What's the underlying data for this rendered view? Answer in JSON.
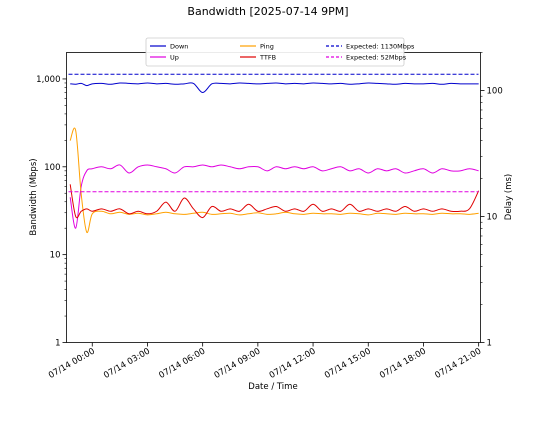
{
  "chart_data": {
    "type": "line",
    "title": "Bandwidth [2025-07-14 9PM]",
    "xlabel": "Date / Time",
    "ylabel": "Bandwidth (Mbps)",
    "y2label": "Delay (ms)",
    "yscale": "log",
    "y2scale": "log",
    "ylim": [
      1,
      2000
    ],
    "y2lim": [
      1,
      200
    ],
    "xlim_hours": [
      -1.4,
      21.1
    ],
    "x_ticks": [
      {
        "hour": 0,
        "label": "07/14 00:00"
      },
      {
        "hour": 3,
        "label": "07/14 03:00"
      },
      {
        "hour": 6,
        "label": "07/14 06:00"
      },
      {
        "hour": 9,
        "label": "07/14 09:00"
      },
      {
        "hour": 12,
        "label": "07/14 12:00"
      },
      {
        "hour": 15,
        "label": "07/14 15:00"
      },
      {
        "hour": 18,
        "label": "07/14 18:00"
      },
      {
        "hour": 21,
        "label": "07/14 21:00"
      }
    ],
    "y_ticks": [
      {
        "value": 1,
        "label": "1"
      },
      {
        "value": 10,
        "label": "10"
      },
      {
        "value": 100,
        "label": "100"
      },
      {
        "value": 1000,
        "label": "1,000"
      }
    ],
    "y2_ticks": [
      {
        "value": 1,
        "label": "1"
      },
      {
        "value": 10,
        "label": "10"
      },
      {
        "value": 100,
        "label": "100"
      }
    ],
    "legend_position": "top-center",
    "grid": false,
    "x_hours": [
      -1.2,
      -0.9,
      -0.6,
      -0.3,
      0,
      0.5,
      1,
      1.5,
      2,
      2.5,
      3,
      3.5,
      4,
      4.5,
      5,
      5.5,
      6,
      6.5,
      7,
      7.5,
      8,
      8.5,
      9,
      9.5,
      10,
      10.5,
      11,
      11.5,
      12,
      12.5,
      13,
      13.5,
      14,
      14.5,
      15,
      15.5,
      16,
      16.5,
      17,
      17.5,
      18,
      18.5,
      19,
      19.5,
      20,
      20.5,
      21
    ],
    "series": [
      {
        "name": "Down",
        "axis": "left",
        "color": "#0000cc",
        "values": [
          880,
          870,
          890,
          840,
          880,
          890,
          870,
          900,
          890,
          880,
          900,
          880,
          890,
          870,
          880,
          890,
          700,
          880,
          890,
          880,
          900,
          890,
          880,
          890,
          900,
          880,
          890,
          880,
          900,
          890,
          880,
          890,
          870,
          880,
          900,
          890,
          880,
          870,
          890,
          880,
          880,
          890,
          870,
          890,
          880,
          880,
          880
        ]
      },
      {
        "name": "Up",
        "axis": "left",
        "color": "#e000e0",
        "values": [
          45,
          20,
          60,
          90,
          95,
          100,
          95,
          105,
          85,
          100,
          105,
          100,
          95,
          85,
          100,
          100,
          105,
          100,
          105,
          100,
          95,
          100,
          100,
          90,
          100,
          95,
          100,
          95,
          100,
          90,
          95,
          100,
          90,
          95,
          85,
          95,
          90,
          95,
          85,
          90,
          95,
          85,
          95,
          90,
          90,
          95,
          90
        ]
      },
      {
        "name": "Ping",
        "axis": "right",
        "color": "#ffa000",
        "values": [
          40,
          48,
          15,
          7.5,
          10.5,
          11,
          10.5,
          10.8,
          10.4,
          10.6,
          10.3,
          10.5,
          10.8,
          10.5,
          10.4,
          10.6,
          10.8,
          10.4,
          10.5,
          10.6,
          10.3,
          10.5,
          10.7,
          10.4,
          10.5,
          10.8,
          10.5,
          10.4,
          10.6,
          10.5,
          10.5,
          10.4,
          10.6,
          10.5,
          10.3,
          10.6,
          10.5,
          10.4,
          10.6,
          10.5,
          10.5,
          10.4,
          10.6,
          10.5,
          10.5,
          10.4,
          10.6
        ]
      },
      {
        "name": "TTFB",
        "axis": "right",
        "color": "#e00000",
        "values": [
          18,
          10,
          11,
          11.5,
          11,
          11.5,
          11,
          11.5,
          10.5,
          11,
          10.5,
          11,
          13,
          11,
          14,
          11.5,
          9.8,
          12,
          11,
          11.5,
          11,
          12.5,
          11,
          11.5,
          12,
          11,
          11.5,
          11,
          12.5,
          11,
          11.5,
          11,
          12.5,
          11,
          11.5,
          11,
          11.5,
          11,
          12,
          11,
          11.5,
          11,
          11.5,
          11,
          11,
          11.5,
          16
        ]
      },
      {
        "name": "Expected: 1130Mbps",
        "axis": "left",
        "color": "#0000cc",
        "dashed": true,
        "constant": 1130
      },
      {
        "name": "Expected: 52Mbps",
        "axis": "left",
        "color": "#e000e0",
        "dashed": true,
        "constant": 52
      }
    ]
  }
}
